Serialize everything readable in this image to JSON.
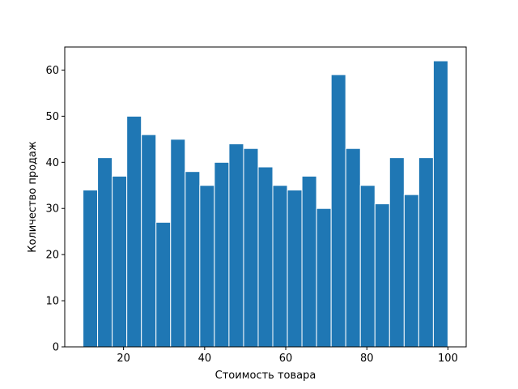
{
  "chart_data": {
    "type": "bar",
    "chart_kind": "histogram",
    "xlabel": "Стоимость товара",
    "ylabel": "Количество продаж",
    "xlim": [
      5.5,
      104.5
    ],
    "ylim": [
      0,
      65
    ],
    "xticks": [
      20,
      40,
      60,
      80,
      100
    ],
    "yticks": [
      0,
      10,
      20,
      30,
      40,
      50,
      60
    ],
    "bin_edges": [
      10,
      13.6,
      17.2,
      20.8,
      24.4,
      28,
      31.6,
      35.2,
      38.8,
      42.4,
      46,
      49.6,
      53.2,
      56.8,
      60.4,
      64,
      67.6,
      71.2,
      74.8,
      78.4,
      82,
      85.6,
      89.2,
      92.8,
      96.4,
      100
    ],
    "values": [
      34,
      41,
      37,
      50,
      46,
      27,
      45,
      38,
      35,
      40,
      44,
      43,
      39,
      35,
      34,
      37,
      30,
      59,
      43,
      35,
      31,
      41,
      33,
      41,
      62
    ],
    "bar_color": "#1f77b4",
    "edge_color": "#ffffff",
    "grid": false
  }
}
